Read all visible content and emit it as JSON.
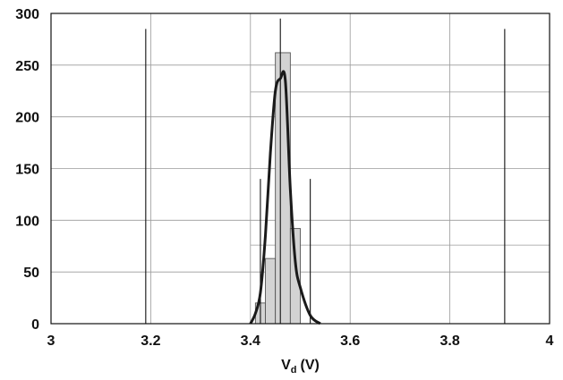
{
  "chart_data": {
    "type": "bar",
    "title": "",
    "xlabel": "V",
    "xlabel_subscript": "d",
    "xlabel_unit": "(V)",
    "ylabel": "",
    "xlim": [
      3,
      4
    ],
    "ylim": [
      0,
      300
    ],
    "x_ticks": [
      "3",
      "3.2",
      "3.4",
      "3.6",
      "3.8",
      "4"
    ],
    "y_ticks": [
      "300",
      "250",
      "200",
      "150",
      "100",
      "50",
      "0"
    ],
    "grid": true,
    "histogram": {
      "bins": [
        {
          "x0": 3.41,
          "x1": 3.43,
          "count": 20
        },
        {
          "x0": 3.43,
          "x1": 3.45,
          "count": 63
        },
        {
          "x0": 3.45,
          "x1": 3.48,
          "count": 262
        },
        {
          "x0": 3.48,
          "x1": 3.5,
          "count": 92
        }
      ]
    },
    "fit_curve": {
      "x": [
        3.4,
        3.41,
        3.42,
        3.43,
        3.44,
        3.45,
        3.46,
        3.47,
        3.48,
        3.49,
        3.5,
        3.52,
        3.54
      ],
      "y": [
        0,
        10,
        30,
        85,
        165,
        225,
        237,
        235,
        130,
        60,
        35,
        8,
        0
      ]
    },
    "vertical_markers": [
      {
        "x": 3.19,
        "y": 285
      },
      {
        "x": 3.42,
        "y": 140
      },
      {
        "x": 3.46,
        "y": 295
      },
      {
        "x": 3.52,
        "y": 140
      },
      {
        "x": 3.91,
        "y": 285
      }
    ],
    "extra_horizontal_lines": [
      224,
      76
    ]
  }
}
